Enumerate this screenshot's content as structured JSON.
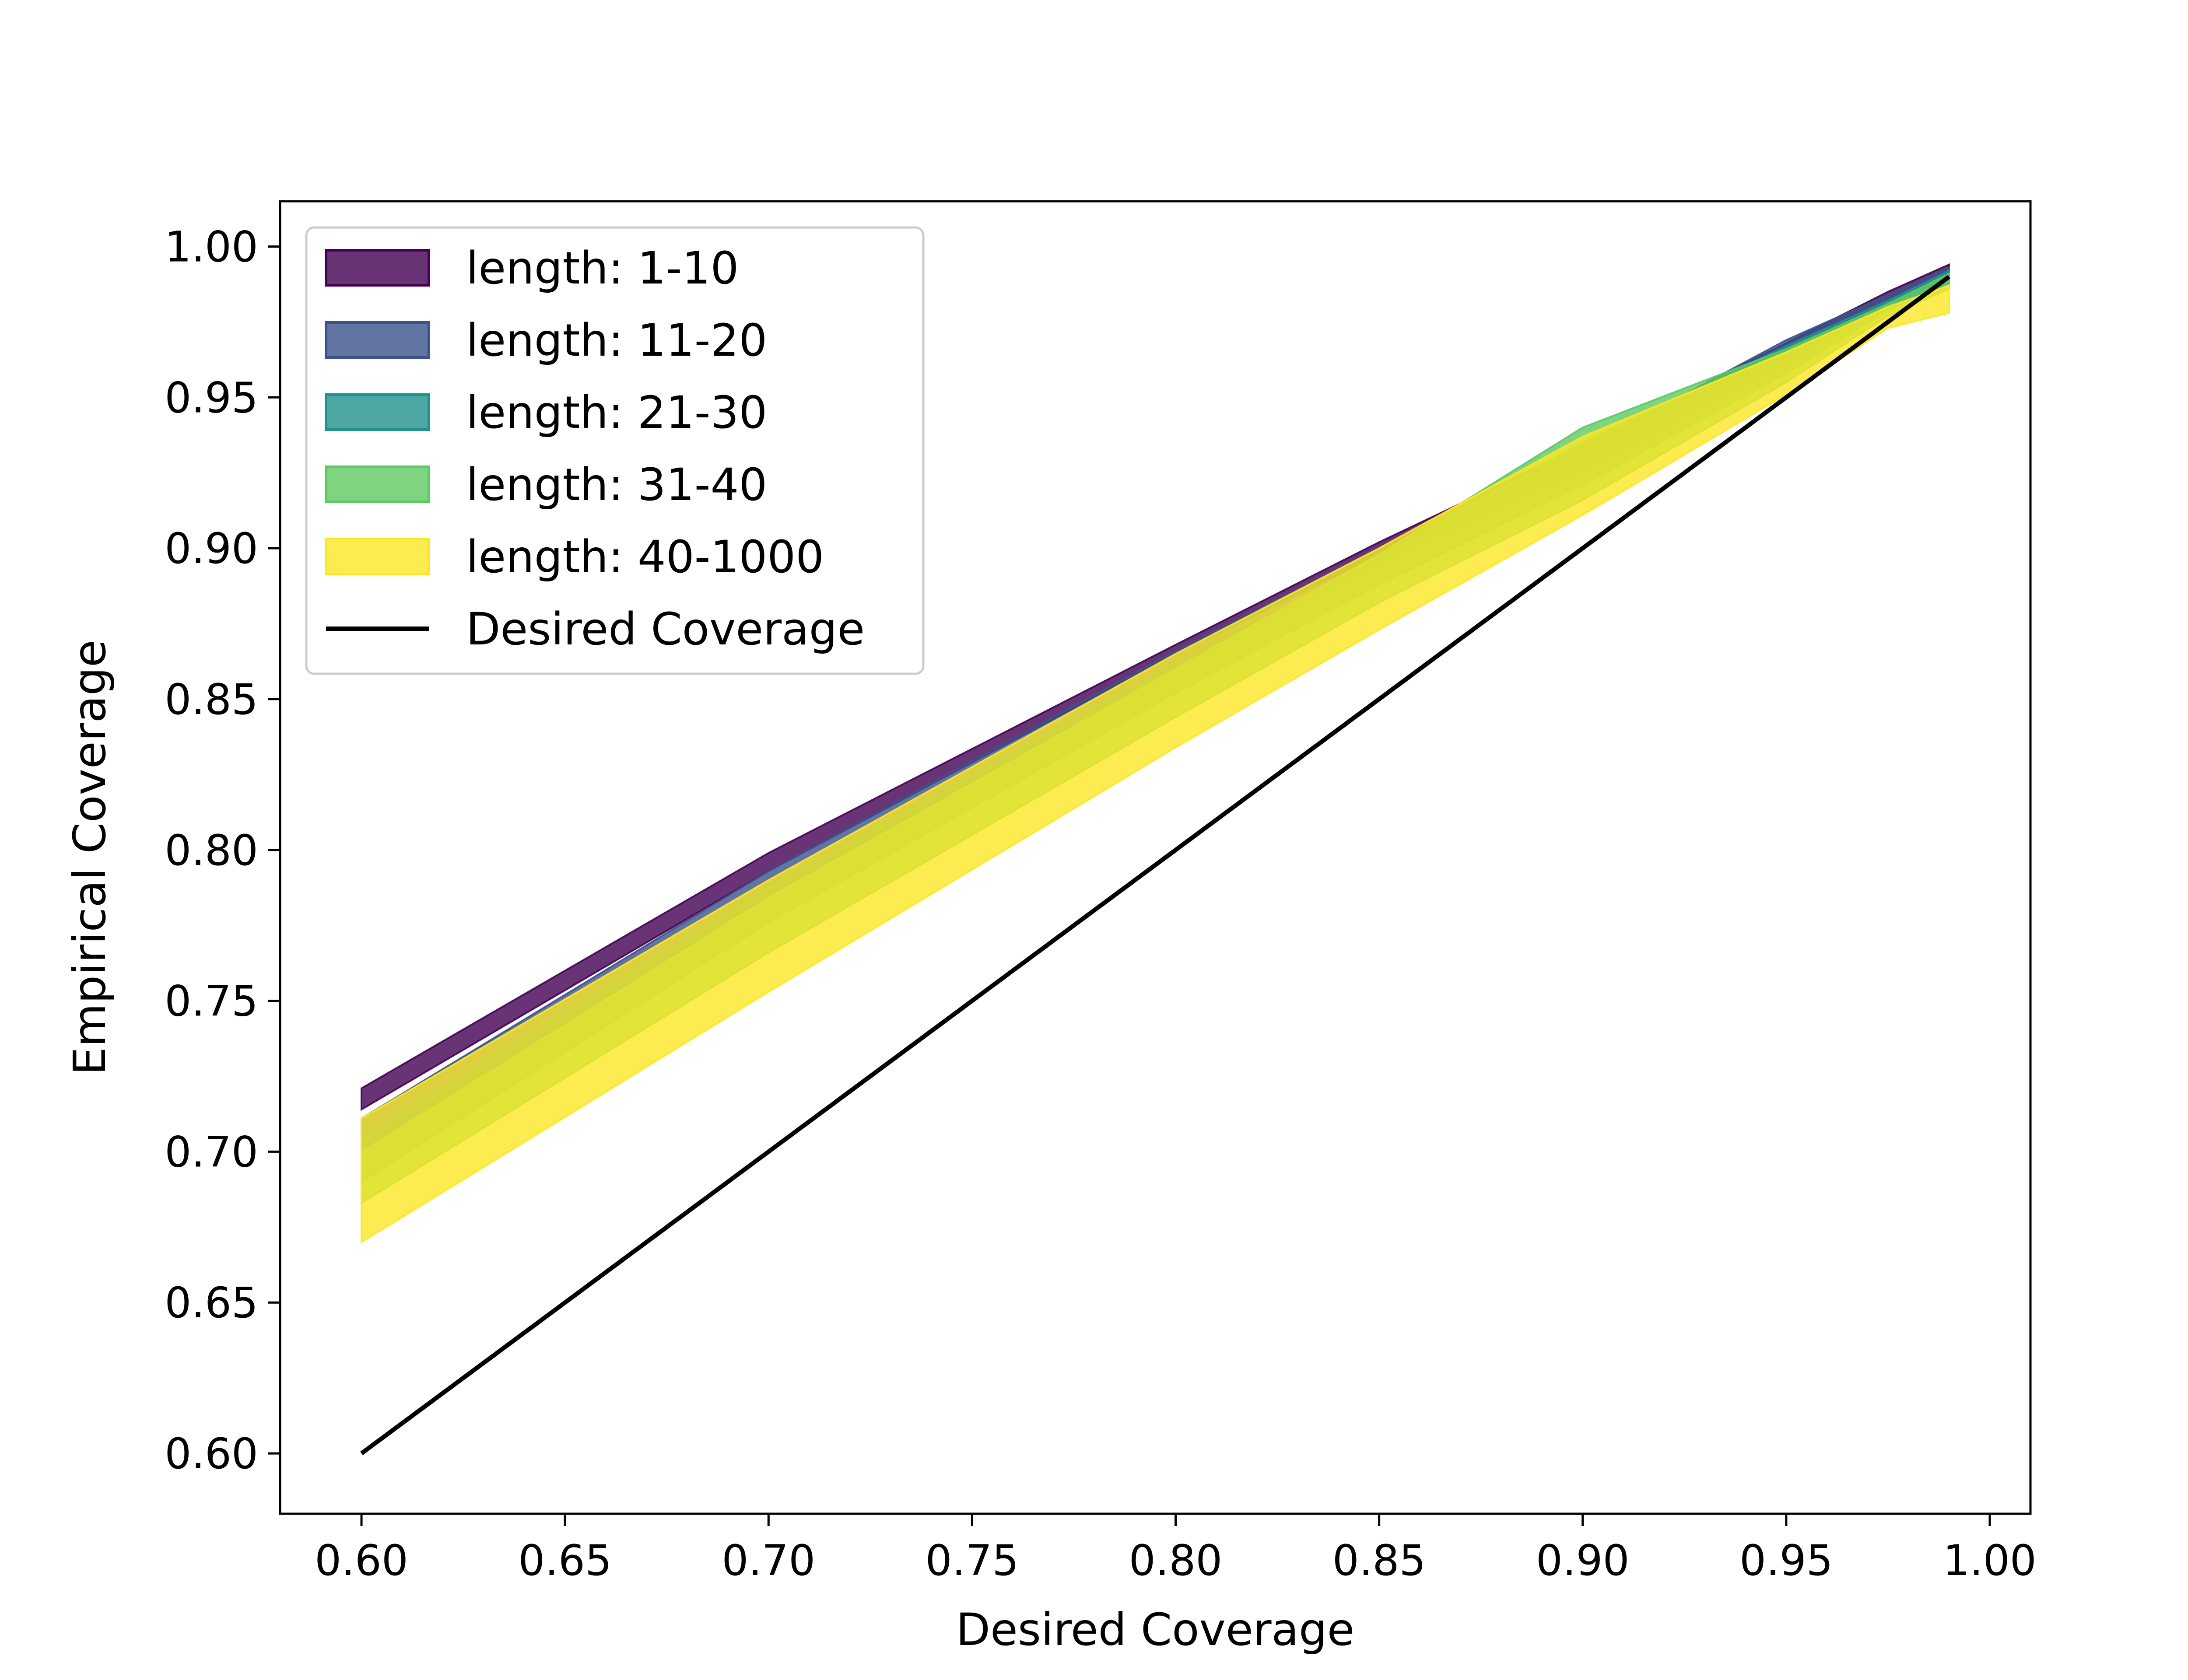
{
  "chart_data": {
    "type": "area",
    "title": "",
    "xlabel": "Desired Coverage",
    "ylabel": "Empirical Coverage",
    "xlim": [
      0.58,
      1.01
    ],
    "ylim": [
      0.58,
      1.015
    ],
    "xticks": [
      0.6,
      0.65,
      0.7,
      0.75,
      0.8,
      0.85,
      0.9,
      0.95,
      1.0
    ],
    "yticks": [
      0.6,
      0.65,
      0.7,
      0.75,
      0.8,
      0.85,
      0.9,
      0.95,
      1.0
    ],
    "xtick_labels": [
      "0.60",
      "0.65",
      "0.70",
      "0.75",
      "0.80",
      "0.85",
      "0.90",
      "0.95",
      "1.00"
    ],
    "ytick_labels": [
      "0.60",
      "0.65",
      "0.70",
      "0.75",
      "0.80",
      "0.85",
      "0.90",
      "0.95",
      "1.00"
    ],
    "grid": false,
    "legend_position": "top-left",
    "x": [
      0.6,
      0.7,
      0.8,
      0.85,
      0.9,
      0.95,
      0.975,
      0.99
    ],
    "series": [
      {
        "name": "length: 1-10",
        "color": "#440154",
        "lower": [
          0.714,
          0.793,
          0.865,
          0.898,
          0.928,
          0.962,
          0.982,
          0.991
        ],
        "upper": [
          0.721,
          0.799,
          0.868,
          0.902,
          0.934,
          0.968,
          0.985,
          0.994
        ]
      },
      {
        "name": "length: 11-20",
        "color": "#3b528b",
        "lower": [
          0.7,
          0.785,
          0.86,
          0.895,
          0.926,
          0.961,
          0.981,
          0.99
        ],
        "upper": [
          0.711,
          0.793,
          0.866,
          0.9,
          0.933,
          0.969,
          0.984,
          0.993
        ]
      },
      {
        "name": "length: 21-30",
        "color": "#21918c",
        "lower": [
          0.69,
          0.776,
          0.852,
          0.888,
          0.921,
          0.958,
          0.979,
          0.988
        ],
        "upper": [
          0.705,
          0.788,
          0.862,
          0.897,
          0.935,
          0.967,
          0.982,
          0.992
        ]
      },
      {
        "name": "length: 31-40",
        "color": "#5ec962",
        "lower": [
          0.683,
          0.766,
          0.844,
          0.882,
          0.916,
          0.955,
          0.977,
          0.986
        ],
        "upper": [
          0.7,
          0.784,
          0.86,
          0.898,
          0.94,
          0.966,
          0.981,
          0.991
        ]
      },
      {
        "name": "length: 40-1000",
        "color": "#fde725",
        "lower": [
          0.67,
          0.753,
          0.834,
          0.873,
          0.911,
          0.951,
          0.973,
          0.978
        ],
        "upper": [
          0.711,
          0.79,
          0.865,
          0.9,
          0.937,
          0.965,
          0.98,
          0.987
        ]
      }
    ],
    "reference_line": {
      "name": "Desired Coverage",
      "color": "#000000",
      "x": [
        0.6,
        0.99
      ],
      "y": [
        0.6,
        0.99
      ]
    }
  }
}
